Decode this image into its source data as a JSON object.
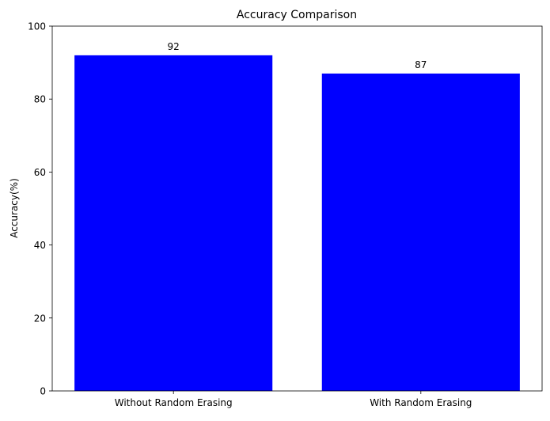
{
  "chart_data": {
    "type": "bar",
    "title": "Accuracy Comparison",
    "xlabel": "",
    "ylabel": "Accuracy(%)",
    "categories": [
      "Without Random Erasing",
      "With Random Erasing"
    ],
    "values": [
      92,
      87
    ],
    "data_labels": [
      "92",
      "87"
    ],
    "ylim": [
      0,
      100
    ],
    "yticks": [
      0,
      20,
      40,
      60,
      80,
      100
    ],
    "bar_color": "#0000ff",
    "grid": false,
    "legend": "none"
  }
}
